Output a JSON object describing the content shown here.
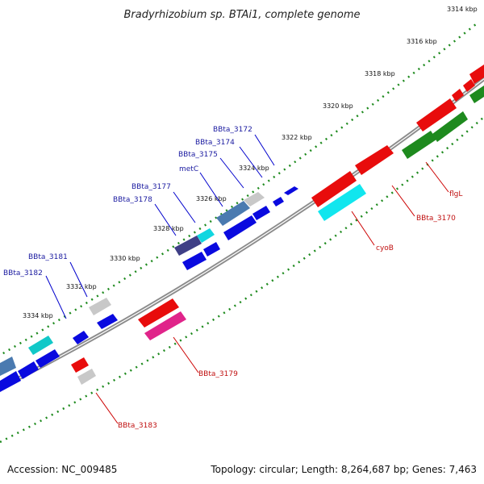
{
  "title": "Bradyrhizobium sp. BTAi1, complete genome",
  "footer": {
    "accession": "Accession: NC_009485",
    "topology": "Topology: circular; Length: 8,264,687 bp; Genes: 7,463"
  },
  "colors": {
    "backbone": "#888888",
    "tick_dots": "#1e8a1e",
    "blue_label": "#1a1aa0",
    "red_label": "#c01010"
  },
  "ticks": [
    "3314 kbp",
    "3316 kbp",
    "3318 kbp",
    "3320 kbp",
    "3322 kbp",
    "3324 kbp",
    "3326 kbp",
    "3328 kbp",
    "3330 kbp",
    "3332 kbp",
    "3334 kbp"
  ],
  "blue_labels": [
    "BBta_3172",
    "BBta_3174",
    "BBta_3175",
    "metC",
    "BBta_3177",
    "BBta_3178",
    "BBta_3181",
    "BBta_3182"
  ],
  "red_labels": [
    "flgL",
    "BBta_3170",
    "cyoB",
    "BBta_3179",
    "BBta_3183"
  ]
}
